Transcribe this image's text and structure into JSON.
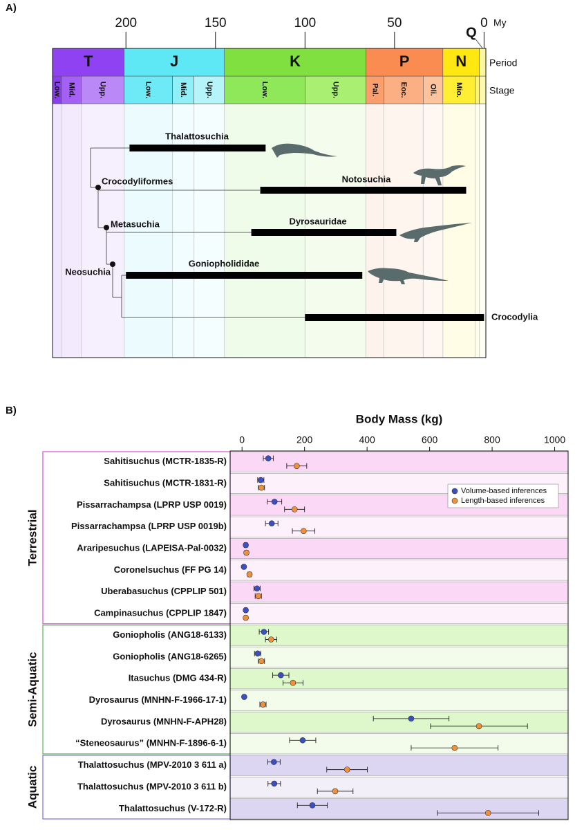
{
  "chart_data": [
    {
      "type": "timeline",
      "panel": "A)",
      "x_unit": "My",
      "xlim": [
        241,
        -1
      ],
      "xticks": [
        200,
        150,
        100,
        50,
        0
      ],
      "row_labels": [
        "Period",
        "Stage"
      ],
      "periods": [
        {
          "name": "T",
          "start": 241,
          "end": 201,
          "color": "#8f42f2"
        },
        {
          "name": "J",
          "start": 201,
          "end": 145,
          "color": "#5ee8f5"
        },
        {
          "name": "K",
          "start": 145,
          "end": 66,
          "color": "#7fe040"
        },
        {
          "name": "P",
          "start": 66,
          "end": 23,
          "color": "#fa8c52"
        },
        {
          "name": "N",
          "start": 23,
          "end": 2.6,
          "color": "#ffe812"
        },
        {
          "name": "Q",
          "start": 2.6,
          "end": -1,
          "color": "#fff6a0"
        }
      ],
      "stages": [
        {
          "name": "Low.",
          "start": 241,
          "end": 236,
          "color": "#8a3cf0"
        },
        {
          "name": "Mid.",
          "start": 236,
          "end": 225,
          "color": "#a560f5"
        },
        {
          "name": "Upp.",
          "start": 225,
          "end": 201,
          "color": "#ba88f7"
        },
        {
          "name": "Low.",
          "start": 201,
          "end": 174,
          "color": "#6eeaf7"
        },
        {
          "name": "Mid.",
          "start": 174,
          "end": 162,
          "color": "#90eff7"
        },
        {
          "name": "Upp.",
          "start": 162,
          "end": 145,
          "color": "#b5f5fa"
        },
        {
          "name": "Low.",
          "start": 145,
          "end": 100,
          "color": "#8ee85a"
        },
        {
          "name": "Upp.",
          "start": 100,
          "end": 66,
          "color": "#a9ef72"
        },
        {
          "name": "Pal.",
          "start": 66,
          "end": 56,
          "color": "#fb9e6e"
        },
        {
          "name": "Eoc.",
          "start": 56,
          "end": 34,
          "color": "#fbaf82"
        },
        {
          "name": "Oli.",
          "start": 34,
          "end": 23,
          "color": "#fdc39c"
        },
        {
          "name": "Mio.",
          "start": 23,
          "end": 5,
          "color": "#ffee33"
        },
        {
          "name": null,
          "start": 5,
          "end": 2.6,
          "color": "#fff27a"
        },
        {
          "name": null,
          "start": 2.6,
          "end": -1,
          "color": "#fffab0"
        }
      ],
      "clades": [
        {
          "name": "Thalattosuchia",
          "start": 198,
          "end": 122
        },
        {
          "name": "Notosuchia",
          "start": 125,
          "end": 10
        },
        {
          "name": "Dyrosauridae",
          "start": 130,
          "end": 49
        },
        {
          "name": "Goniopholididae",
          "start": 200,
          "end": 68
        },
        {
          "name": "Crocodylia",
          "start": 100,
          "end": 0
        }
      ],
      "nodes": [
        "Crocodyliformes",
        "Metasuchia",
        "Neosuchia"
      ]
    },
    {
      "type": "dot",
      "panel": "B)",
      "x_label": "Body Mass (kg)",
      "xlim": [
        -38,
        1043
      ],
      "xticks": [
        0,
        200,
        400,
        600,
        800,
        1000
      ],
      "groups": [
        "Terrestrial",
        "Semi-Aquatic",
        "Aquatic"
      ],
      "group_colors": [
        "#d950d3",
        "#5cb85c",
        "#7b6fdb"
      ],
      "categories": [
        [
          "Sahitisuchus (MCTR-1835-R)",
          "Sahitisuchus (MCTR-1831-R)",
          "Pissarrachampsa (LPRP USP 0019)",
          "Pissarrachampsa (LPRP USP 0019b)",
          "Araripesuchus (LAPEISA-Pal-0032)",
          "Coronelsuchus (FF PG 14)",
          "Uberabasuchus (CPPLIP 501)",
          "Campinasuchus (CPPLIP 1847)"
        ],
        [
          "Goniopholis (ANG18-6133)",
          "Goniopholis (ANG18-6265)",
          "Itasuchus (DMG 434-R)",
          "Dyrosaurus (MNHN-F-1966-17-1)",
          "Dyrosaurus (MNHN-F-APH28)",
          "“Steneosaurus” (MNHN-F-1896-6-1)"
        ],
        [
          "Thalattosuchus (MPV-2010 3 611 a)",
          "Thalattosuchus (MPV-2010 3 611 b)",
          "Thalattosuchus (V-172-R)"
        ]
      ],
      "series": [
        {
          "name": "Volume-based inferences",
          "color": "#3b4fc4",
          "values": [
            [
              84,
              60,
              104,
              95,
              12,
              6,
              48,
              12
            ],
            [
              70,
              50,
              124,
              7,
              541,
              194
            ],
            [
              102,
              103,
              225
            ]
          ],
          "errors": [
            [
              16,
              10,
              23,
              20,
              5,
              4,
              10,
              4
            ],
            [
              15,
              10,
              26,
              4,
              121,
              42
            ],
            [
              20,
              20,
              48
            ]
          ]
        },
        {
          "name": "Length-based inferences",
          "color": "#f0903a",
          "values": [
            [
              175,
              62,
              168,
              197,
              14,
              24,
              52,
              12
            ],
            [
              93,
              62,
              163,
              67,
              758,
              680
            ],
            [
              336,
              298,
              787
            ]
          ],
          "errors": [
            [
              32,
              10,
              32,
              36,
              5,
              5,
              10,
              4
            ],
            [
              18,
              10,
              32,
              10,
              155,
              139
            ],
            [
              65,
              57,
              162
            ]
          ]
        }
      ],
      "legend": "upper right"
    }
  ]
}
